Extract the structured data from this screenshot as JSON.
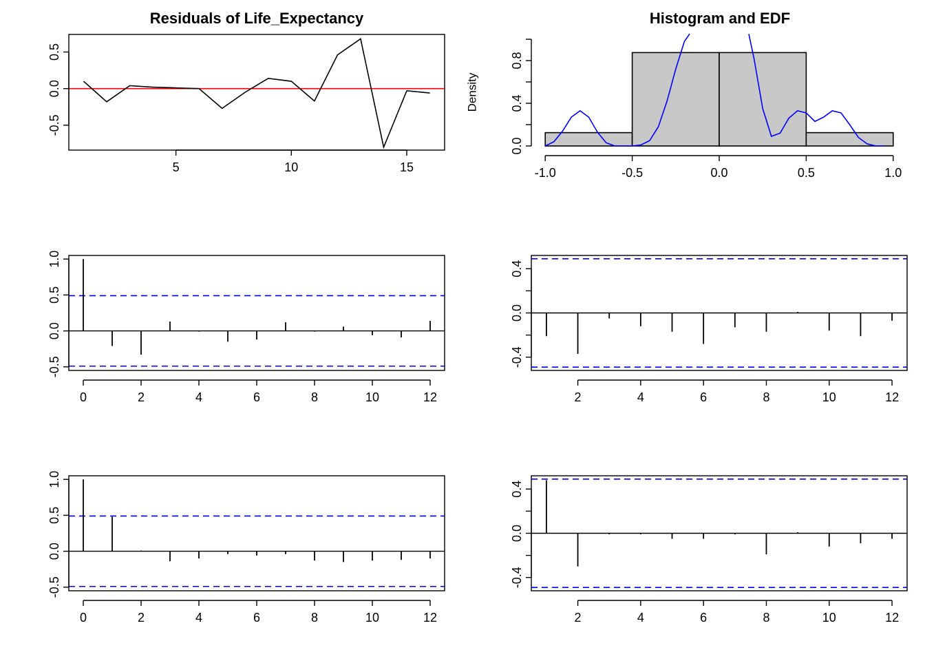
{
  "chart_data": [
    {
      "id": "residuals",
      "type": "line",
      "title": "Residuals of Life_Expectancy",
      "xlabel": "",
      "ylabel": "",
      "xlim": [
        0.36,
        16.64
      ],
      "ylim": [
        -0.84,
        0.74
      ],
      "xticks": [
        5,
        10,
        15
      ],
      "yticks": [
        -0.5,
        0.0,
        0.5
      ],
      "xtick_labels": [
        "5",
        "10",
        "15"
      ],
      "ytick_labels": [
        "-0.5",
        "0.0",
        "0.5"
      ],
      "x": [
        1,
        2,
        3,
        4,
        5,
        6,
        7,
        8,
        9,
        10,
        11,
        12,
        13,
        14,
        15,
        16
      ],
      "values": [
        0.1,
        -0.18,
        0.04,
        0.02,
        0.01,
        0.0,
        -0.27,
        -0.05,
        0.14,
        0.1,
        -0.17,
        0.46,
        0.68,
        -0.8,
        -0.03,
        -0.06
      ],
      "reference_line": 0,
      "line_color": "#000000",
      "reference_color": "#ff0000"
    },
    {
      "id": "histogram",
      "type": "bar",
      "title": "Histogram and EDF",
      "xlabel": "",
      "ylabel": "Density",
      "xlim": [
        -1.08,
        1.08
      ],
      "ylim": [
        0,
        1.0
      ],
      "xticks": [
        -1.0,
        -0.5,
        0.0,
        0.5,
        1.0
      ],
      "yticks": [
        0.0,
        0.4,
        0.8
      ],
      "yticks_minor": [
        0.2,
        0.6,
        1.0
      ],
      "xtick_labels": [
        "-1.0",
        "-0.5",
        "0.0",
        "0.5",
        "1.0"
      ],
      "ytick_labels": [
        "0.0",
        "0.4",
        "0.8"
      ],
      "bins": [
        [
          -1.0,
          -0.5
        ],
        [
          -0.5,
          0.0
        ],
        [
          0.0,
          0.5
        ],
        [
          0.5,
          1.0
        ]
      ],
      "values": [
        0.125,
        0.875,
        0.875,
        0.125
      ],
      "bar_color": "#c8c8c8",
      "density_curve": {
        "color": "#0000ff",
        "x": [
          -1.0,
          -0.95,
          -0.9,
          -0.85,
          -0.8,
          -0.75,
          -0.7,
          -0.65,
          -0.6,
          -0.55,
          -0.5,
          -0.45,
          -0.4,
          -0.35,
          -0.3,
          -0.25,
          -0.2,
          -0.17,
          0.17,
          0.2,
          0.25,
          0.3,
          0.35,
          0.4,
          0.45,
          0.5,
          0.55,
          0.6,
          0.65,
          0.7,
          0.75,
          0.8,
          0.85,
          0.9,
          0.95
        ],
        "values": [
          0.0,
          0.04,
          0.14,
          0.27,
          0.33,
          0.27,
          0.13,
          0.03,
          0.0,
          0.0,
          0.0,
          0.01,
          0.05,
          0.18,
          0.42,
          0.72,
          0.98,
          1.05,
          1.05,
          0.82,
          0.35,
          0.09,
          0.12,
          0.26,
          0.33,
          0.31,
          0.23,
          0.27,
          0.33,
          0.31,
          0.2,
          0.08,
          0.02,
          0.0,
          0.0
        ]
      }
    },
    {
      "id": "acf",
      "type": "bar",
      "title": "",
      "xlabel": "",
      "ylabel": "",
      "xlim": [
        -0.5,
        12.5
      ],
      "ylim": [
        -0.55,
        1.05
      ],
      "xticks": [
        0,
        2,
        4,
        6,
        8,
        10,
        12
      ],
      "yticks": [
        -0.5,
        0.0,
        0.5,
        1.0
      ],
      "xtick_labels": [
        "0",
        "2",
        "4",
        "6",
        "8",
        "10",
        "12"
      ],
      "ytick_labels": [
        "-0.5",
        "0.0",
        "0.5",
        "1.0"
      ],
      "lags": [
        0,
        1,
        2,
        3,
        4,
        5,
        6,
        7,
        8,
        9,
        10,
        11,
        12
      ],
      "values": [
        1.0,
        -0.21,
        -0.33,
        0.13,
        -0.01,
        -0.15,
        -0.12,
        0.12,
        -0.01,
        0.06,
        -0.06,
        -0.09,
        0.14
      ],
      "conf_limit": 0.49,
      "conf_color": "#0000ff"
    },
    {
      "id": "pacf",
      "type": "bar",
      "title": "",
      "xlabel": "",
      "ylabel": "",
      "xlim": [
        0.52,
        12.48
      ],
      "ylim": [
        -0.52,
        0.52
      ],
      "xticks": [
        2,
        4,
        6,
        8,
        10,
        12
      ],
      "yticks": [
        -0.4,
        0.0,
        0.4
      ],
      "yticks_minor": [
        -0.2,
        0.2
      ],
      "xtick_labels": [
        "2",
        "4",
        "6",
        "8",
        "10",
        "12"
      ],
      "ytick_labels": [
        "-0.4",
        "0.0",
        "0.4"
      ],
      "lags": [
        1,
        2,
        3,
        4,
        5,
        6,
        7,
        8,
        9,
        10,
        11,
        12
      ],
      "values": [
        -0.21,
        -0.37,
        -0.05,
        -0.12,
        -0.17,
        -0.28,
        -0.13,
        -0.17,
        0.01,
        -0.16,
        -0.21,
        -0.07
      ],
      "conf_limit": 0.49,
      "conf_color": "#0000ff"
    },
    {
      "id": "acf-squared",
      "type": "bar",
      "title": "",
      "xlabel": "",
      "ylabel": "",
      "xlim": [
        -0.5,
        12.5
      ],
      "ylim": [
        -0.55,
        1.05
      ],
      "xticks": [
        0,
        2,
        4,
        6,
        8,
        10,
        12
      ],
      "yticks": [
        -0.5,
        0.0,
        0.5,
        1.0
      ],
      "xtick_labels": [
        "0",
        "2",
        "4",
        "6",
        "8",
        "10",
        "12"
      ],
      "ytick_labels": [
        "-0.5",
        "0.0",
        "0.5",
        "1.0"
      ],
      "lags": [
        0,
        1,
        2,
        3,
        4,
        5,
        6,
        7,
        8,
        9,
        10,
        11,
        12
      ],
      "values": [
        1.0,
        0.48,
        0.01,
        -0.14,
        -0.1,
        -0.04,
        -0.06,
        -0.04,
        -0.13,
        -0.15,
        -0.13,
        -0.12,
        -0.1
      ],
      "conf_limit": 0.49,
      "conf_color": "#0000ff"
    },
    {
      "id": "pacf-squared",
      "type": "bar",
      "title": "",
      "xlabel": "",
      "ylabel": "",
      "xlim": [
        0.52,
        12.48
      ],
      "ylim": [
        -0.52,
        0.52
      ],
      "xticks": [
        2,
        4,
        6,
        8,
        10,
        12
      ],
      "yticks": [
        -0.4,
        0.0,
        0.4
      ],
      "yticks_minor": [
        -0.2,
        0.2
      ],
      "xtick_labels": [
        "2",
        "4",
        "6",
        "8",
        "10",
        "12"
      ],
      "ytick_labels": [
        "-0.4",
        "0.0",
        "0.4"
      ],
      "lags": [
        1,
        2,
        3,
        4,
        5,
        6,
        7,
        8,
        9,
        10,
        11,
        12
      ],
      "values": [
        0.48,
        -0.3,
        -0.01,
        -0.01,
        -0.05,
        -0.05,
        -0.01,
        -0.19,
        0.01,
        -0.12,
        -0.09,
        -0.05
      ],
      "conf_limit": 0.49,
      "conf_color": "#0000ff"
    }
  ]
}
